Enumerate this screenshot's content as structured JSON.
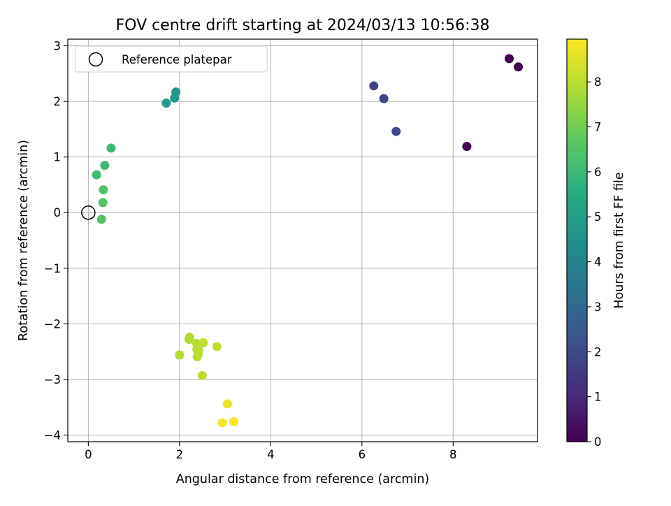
{
  "chart_data": {
    "type": "scatter",
    "title": "FOV centre drift starting at 2024/03/13 10:56:38",
    "xlabel": "Angular distance from reference (arcmin)",
    "ylabel": "Rotation from reference (arcmin)",
    "xlim": [
      -0.45,
      9.85
    ],
    "ylim": [
      -4.12,
      3.12
    ],
    "xticks": [
      0,
      2,
      4,
      6,
      8
    ],
    "yticks": [
      -4,
      -3,
      -2,
      -1,
      0,
      1,
      2,
      3
    ],
    "grid": true,
    "legend": {
      "placement": "top-left",
      "entries": [
        "Reference platepar"
      ]
    },
    "reference": {
      "x": 0,
      "y": 0
    },
    "colorbar": {
      "label": "Hours from first FF file",
      "colormap": "viridis",
      "range": [
        0,
        8.95
      ],
      "ticks": [
        0,
        1,
        2,
        3,
        4,
        5,
        6,
        7,
        8
      ]
    },
    "points": [
      {
        "x": 9.23,
        "y": 2.77,
        "hours": 0.0
      },
      {
        "x": 9.43,
        "y": 2.62,
        "hours": 0.05
      },
      {
        "x": 8.3,
        "y": 1.19,
        "hours": 0.1
      },
      {
        "x": 6.26,
        "y": 2.28,
        "hours": 1.8
      },
      {
        "x": 6.48,
        "y": 2.05,
        "hours": 1.85
      },
      {
        "x": 6.75,
        "y": 1.46,
        "hours": 1.9
      },
      {
        "x": 1.92,
        "y": 2.17,
        "hours": 4.7
      },
      {
        "x": 1.89,
        "y": 2.06,
        "hours": 4.75
      },
      {
        "x": 1.71,
        "y": 1.97,
        "hours": 4.8
      },
      {
        "x": 0.5,
        "y": 1.16,
        "hours": 6.0
      },
      {
        "x": 0.36,
        "y": 0.85,
        "hours": 6.05
      },
      {
        "x": 0.18,
        "y": 0.68,
        "hours": 6.1
      },
      {
        "x": 0.33,
        "y": 0.41,
        "hours": 6.4
      },
      {
        "x": 0.32,
        "y": 0.18,
        "hours": 6.45
      },
      {
        "x": 0.29,
        "y": -0.12,
        "hours": 6.5
      },
      {
        "x": 2.0,
        "y": -2.56,
        "hours": 7.9
      },
      {
        "x": 2.21,
        "y": -2.28,
        "hours": 7.85
      },
      {
        "x": 2.22,
        "y": -2.24,
        "hours": 7.9
      },
      {
        "x": 2.37,
        "y": -2.35,
        "hours": 7.95
      },
      {
        "x": 2.38,
        "y": -2.46,
        "hours": 8.0
      },
      {
        "x": 2.42,
        "y": -2.48,
        "hours": 8.0
      },
      {
        "x": 2.39,
        "y": -2.59,
        "hours": 8.0
      },
      {
        "x": 2.41,
        "y": -2.55,
        "hours": 8.05
      },
      {
        "x": 2.52,
        "y": -2.34,
        "hours": 8.05
      },
      {
        "x": 2.82,
        "y": -2.41,
        "hours": 8.05
      },
      {
        "x": 2.5,
        "y": -2.93,
        "hours": 8.1
      },
      {
        "x": 3.05,
        "y": -3.44,
        "hours": 8.7
      },
      {
        "x": 2.94,
        "y": -3.78,
        "hours": 8.85
      },
      {
        "x": 3.19,
        "y": -3.76,
        "hours": 8.9
      }
    ]
  }
}
